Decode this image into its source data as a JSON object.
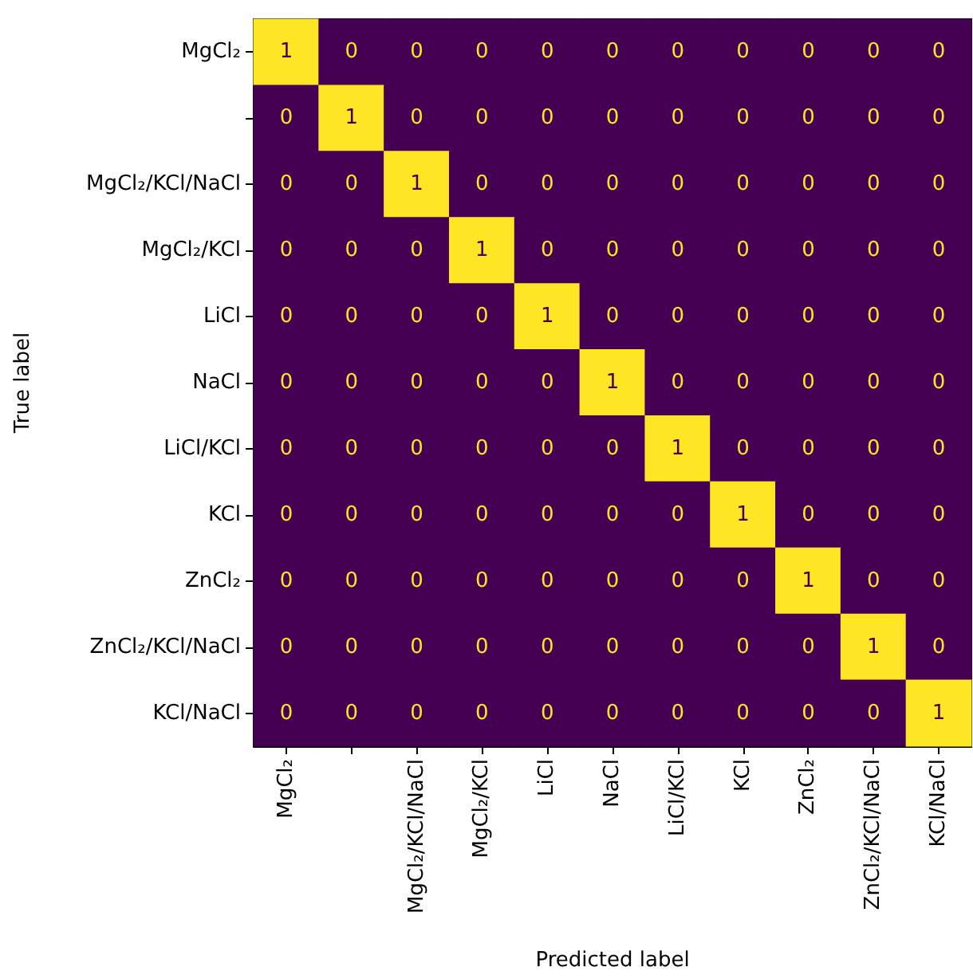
{
  "chart_data": {
    "type": "heatmap",
    "data_labels": true,
    "xlabel": "Predicted label",
    "ylabel": "True label",
    "categories": [
      "MgCl₂",
      null,
      "MgCl₂/KCl/NaCl",
      "MgCl₂/KCl",
      "LiCl",
      "NaCl",
      "LiCl/KCl",
      "KCl",
      "ZnCl₂",
      "ZnCl₂/KCl/NaCl",
      "KCl/NaCl"
    ],
    "y_categories": [
      "MgCl₂",
      null,
      "MgCl₂/KCl/NaCl",
      "MgCl₂/KCl",
      "LiCl",
      "NaCl",
      "LiCl/KCl",
      "KCl",
      "ZnCl₂",
      "ZnCl₂/KCl/NaCl",
      "KCl/NaCl"
    ],
    "cells": [
      [
        1,
        0,
        0,
        0,
        0,
        0,
        0,
        0,
        0,
        0,
        0
      ],
      [
        0,
        1,
        0,
        0,
        0,
        0,
        0,
        0,
        0,
        0,
        0
      ],
      [
        0,
        0,
        1,
        0,
        0,
        0,
        0,
        0,
        0,
        0,
        0
      ],
      [
        0,
        0,
        0,
        1,
        0,
        0,
        0,
        0,
        0,
        0,
        0
      ],
      [
        0,
        0,
        0,
        0,
        1,
        0,
        0,
        0,
        0,
        0,
        0
      ],
      [
        0,
        0,
        0,
        0,
        0,
        1,
        0,
        0,
        0,
        0,
        0
      ],
      [
        0,
        0,
        0,
        0,
        0,
        0,
        1,
        0,
        0,
        0,
        0
      ],
      [
        0,
        0,
        0,
        0,
        0,
        0,
        0,
        1,
        0,
        0,
        0
      ],
      [
        0,
        0,
        0,
        0,
        0,
        0,
        0,
        0,
        1,
        0,
        0
      ],
      [
        0,
        0,
        0,
        0,
        0,
        0,
        0,
        0,
        0,
        1,
        0
      ],
      [
        0,
        0,
        0,
        0,
        0,
        0,
        0,
        0,
        0,
        0,
        1
      ]
    ]
  }
}
